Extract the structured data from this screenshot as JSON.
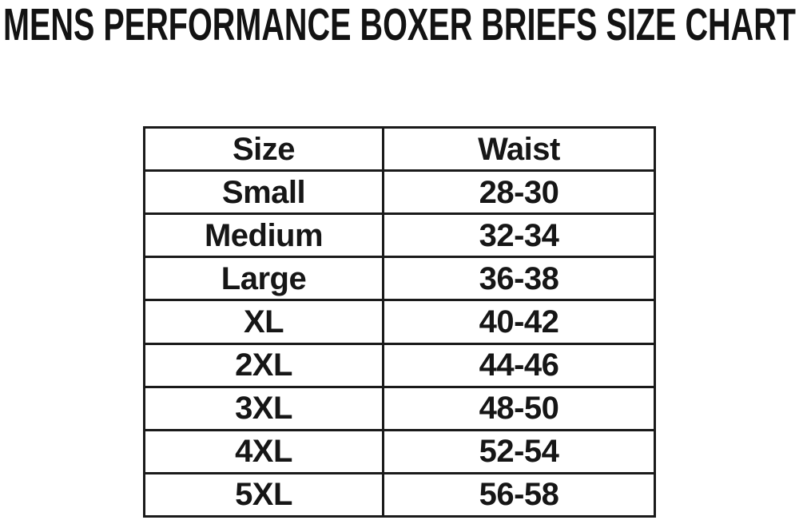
{
  "title": "MENS PERFORMANCE BOXER BRIEFS SIZE CHART",
  "colors": {
    "background": "#ffffff",
    "text": "#131313",
    "table_border": "#1a1a1a"
  },
  "table": {
    "headers": [
      "Size",
      "Waist"
    ],
    "rows": [
      {
        "size": "Small",
        "waist": "28-30"
      },
      {
        "size": "Medium",
        "waist": "32-34"
      },
      {
        "size": "Large",
        "waist": "36-38"
      },
      {
        "size": "XL",
        "waist": "40-42"
      },
      {
        "size": "2XL",
        "waist": "44-46"
      },
      {
        "size": "3XL",
        "waist": "48-50"
      },
      {
        "size": "4XL",
        "waist": "52-54"
      },
      {
        "size": "5XL",
        "waist": "56-58"
      }
    ]
  },
  "chart_data": {
    "type": "table",
    "title": "MENS PERFORMANCE BOXER BRIEFS SIZE CHART",
    "columns": [
      "Size",
      "Waist"
    ],
    "rows": [
      [
        "Small",
        "28-30"
      ],
      [
        "Medium",
        "32-34"
      ],
      [
        "Large",
        "36-38"
      ],
      [
        "XL",
        "40-42"
      ],
      [
        "2XL",
        "44-46"
      ],
      [
        "3XL",
        "48-50"
      ],
      [
        "4XL",
        "52-54"
      ],
      [
        "5XL",
        "56-58"
      ]
    ],
    "notes": "Waist values are inch ranges; 2-column bordered grid, all cells center-aligned bold black on white"
  }
}
